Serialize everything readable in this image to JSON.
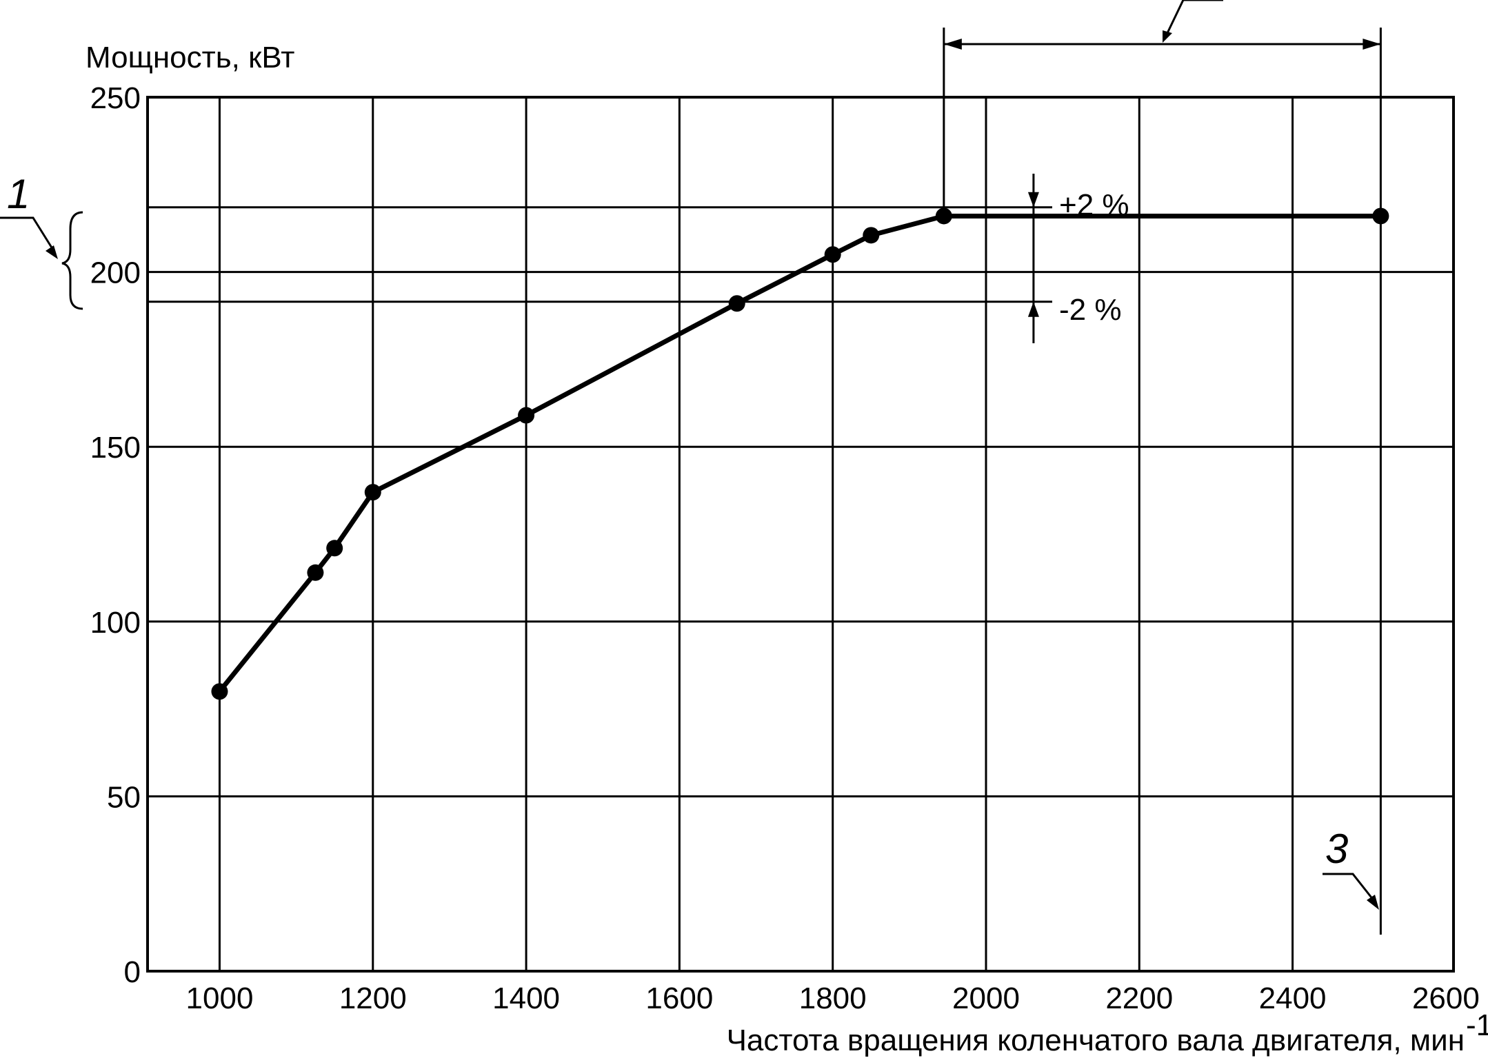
{
  "chart_data": {
    "type": "line",
    "ylabel": "Мощность, кВт",
    "xlabel": "Частота вращения коленчатого вала двигателя, мин",
    "xlabel_superscript": "-1",
    "xlim": [
      906,
      2610
    ],
    "ylim": [
      0,
      250
    ],
    "grid": true,
    "x_ticks": [
      "1000",
      "1200",
      "1400",
      "1600",
      "1800",
      "2000",
      "2200",
      "2400",
      "2600"
    ],
    "y_ticks": [
      "0",
      "50",
      "100",
      "150",
      "200",
      "250"
    ],
    "x_grid": [
      1000,
      1200,
      1400,
      1600,
      1800,
      2000,
      2200,
      2400
    ],
    "y_grid": [
      50,
      100,
      150,
      200
    ],
    "series": [
      {
        "x": [
          1000,
          1125,
          1150,
          1200,
          1400,
          1675,
          1800,
          1850,
          1945,
          2515
        ],
        "y": [
          80,
          114,
          121,
          137,
          159,
          191,
          205,
          210.5,
          216,
          216
        ]
      }
    ],
    "band": {
      "upper": 218.5,
      "lower": 191.5,
      "upper_label": "+2 %",
      "lower_label": "-2 %"
    },
    "range": {
      "from": 1945,
      "to": 2515
    },
    "callouts": {
      "c1": "1",
      "c3": "3"
    }
  }
}
